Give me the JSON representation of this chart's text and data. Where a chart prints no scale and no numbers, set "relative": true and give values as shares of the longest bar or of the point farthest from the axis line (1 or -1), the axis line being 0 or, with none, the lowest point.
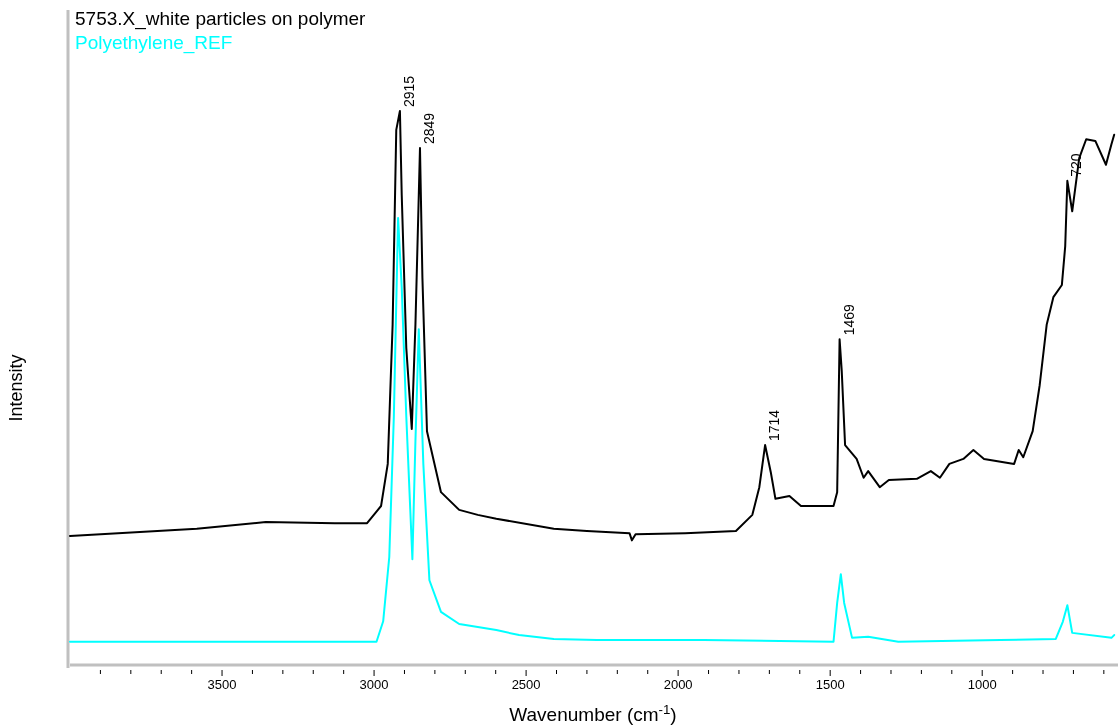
{
  "chart_data": {
    "type": "line",
    "relative": true,
    "xlabel": "Wavenumber (cm$^{-1}$)",
    "ylabel": "Intensity",
    "xlim": [
      4000,
      560
    ],
    "xticks": [
      {
        "value": 3900,
        "label": null
      },
      {
        "value": 3800,
        "label": null
      },
      {
        "value": 3700,
        "label": null
      },
      {
        "value": 3600,
        "label": null
      },
      3500,
      {
        "value": 3400,
        "label": null
      },
      {
        "value": 3300,
        "label": null
      },
      {
        "value": 3200,
        "label": null
      },
      {
        "value": 3100,
        "label": null
      },
      3000,
      {
        "value": 2900,
        "label": null
      },
      {
        "value": 2800,
        "label": null
      },
      {
        "value": 2700,
        "label": null
      },
      {
        "value": 2600,
        "label": null
      },
      2500,
      {
        "value": 2400,
        "label": null
      },
      {
        "value": 2300,
        "label": null
      },
      {
        "value": 2200,
        "label": null
      },
      {
        "value": 2100,
        "label": null
      },
      2000,
      {
        "value": 1900,
        "label": null
      },
      {
        "value": 1800,
        "label": null
      },
      {
        "value": 1700,
        "label": null
      },
      {
        "value": 1600,
        "label": null
      },
      1500,
      {
        "value": 1400,
        "label": null
      },
      {
        "value": 1300,
        "label": null
      },
      {
        "value": 1200,
        "label": null
      },
      {
        "value": 1100,
        "label": null
      },
      1000,
      {
        "value": 900,
        "label": null
      },
      {
        "value": 800,
        "label": null
      },
      {
        "value": 700,
        "label": null
      },
      {
        "value": 600,
        "label": null
      }
    ],
    "grid": false,
    "legend": "top left",
    "marker": "none",
    "line_style": "solid",
    "series": [
      {
        "name": "5753.X_white particles on polymer",
        "color": "#000000",
        "x": [
          4000,
          3583,
          3356,
          3129,
          3023,
          2977,
          2955,
          2939,
          2927,
          2915,
          2909,
          2894,
          2876,
          2864,
          2849,
          2841,
          2826,
          2780,
          2720,
          2659,
          2598,
          2409,
          2300,
          2160,
          2152,
          2140,
          1977,
          1810,
          1756,
          1733,
          1714,
          1695,
          1680,
          1634,
          1596,
          1489,
          1477,
          1469,
          1462,
          1451,
          1413,
          1390,
          1375,
          1337,
          1307,
          1215,
          1169,
          1139,
          1108,
          1062,
          1029,
          994,
          895,
          880,
          865,
          834,
          811,
          788,
          766,
          738,
          727,
          720,
          704,
          681,
          658,
          628,
          593,
          575,
          566
        ],
        "values": [
          0.233,
          0.246,
          0.258,
          0.256,
          0.256,
          0.287,
          0.363,
          0.614,
          0.966,
          1.0,
          0.848,
          0.572,
          0.426,
          0.614,
          0.933,
          0.699,
          0.422,
          0.312,
          0.28,
          0.271,
          0.264,
          0.246,
          0.242,
          0.238,
          0.225,
          0.236,
          0.238,
          0.242,
          0.271,
          0.321,
          0.397,
          0.347,
          0.3,
          0.305,
          0.287,
          0.287,
          0.312,
          0.588,
          0.531,
          0.397,
          0.372,
          0.338,
          0.35,
          0.321,
          0.334,
          0.336,
          0.35,
          0.338,
          0.363,
          0.372,
          0.388,
          0.372,
          0.363,
          0.388,
          0.375,
          0.422,
          0.505,
          0.614,
          0.664,
          0.686,
          0.756,
          0.874,
          0.819,
          0.915,
          0.949,
          0.946,
          0.903,
          0.94,
          0.957
        ]
      },
      {
        "name": "Polyethylene_REF",
        "color": "#00ffff",
        "x": [
          4000,
          2992,
          2970,
          2950,
          2935,
          2921,
          2909,
          2894,
          2874,
          2864,
          2853,
          2838,
          2818,
          2780,
          2720,
          2598,
          2523,
          2409,
          2267,
          1916,
          1489,
          1477,
          1465,
          1454,
          1428,
          1375,
          1276,
          941,
          758,
          735,
          720,
          704,
          575,
          566
        ],
        "values": [
          0.042,
          0.042,
          0.079,
          0.195,
          0.448,
          0.807,
          0.681,
          0.448,
          0.191,
          0.404,
          0.606,
          0.363,
          0.153,
          0.096,
          0.074,
          0.063,
          0.054,
          0.047,
          0.045,
          0.045,
          0.042,
          0.112,
          0.164,
          0.112,
          0.049,
          0.051,
          0.042,
          0.045,
          0.047,
          0.078,
          0.108,
          0.058,
          0.049,
          0.054
        ]
      }
    ],
    "annotations": [
      {
        "text": "2915",
        "x": 2915,
        "y": 1.0
      },
      {
        "text": "2849",
        "x": 2849,
        "y": 0.933
      },
      {
        "text": "1714",
        "x": 1714,
        "y": 0.397
      },
      {
        "text": "1469",
        "x": 1469,
        "y": 0.588
      },
      {
        "text": "720",
        "x": 720,
        "y": 0.874
      }
    ]
  }
}
